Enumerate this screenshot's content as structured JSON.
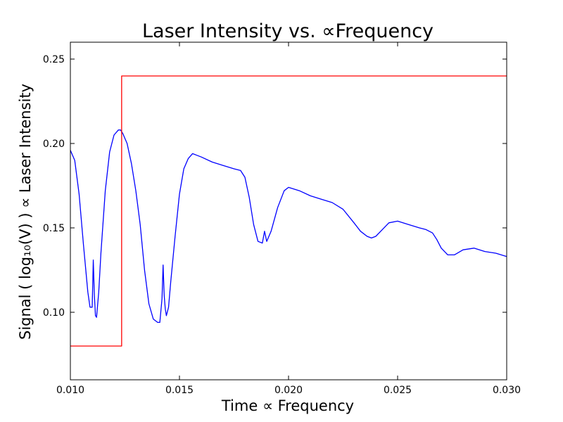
{
  "chart_data": {
    "type": "line",
    "title": "Laser Intensity vs. ∝Frequency",
    "xlabel": "Time ∝ Frequency",
    "ylabel": "Signal ( log₁₀(V) ) ∝ Laser Intensity",
    "xlim": [
      0.01,
      0.03
    ],
    "ylim": [
      0.06,
      0.26
    ],
    "grid": false,
    "x_ticks": [
      "0.010",
      "0.015",
      "0.020",
      "0.025",
      "0.030"
    ],
    "y_ticks": [
      "0.10",
      "0.15",
      "0.20",
      "0.25"
    ],
    "series": [
      {
        "color": "#0000ff",
        "x": [
          0.01,
          0.0102,
          0.0104,
          0.0106,
          0.0108,
          0.0109,
          0.011,
          0.01105,
          0.0111,
          0.01115,
          0.0112,
          0.0113,
          0.0114,
          0.0116,
          0.0118,
          0.012,
          0.0122,
          0.0123,
          0.0124,
          0.0126,
          0.0128,
          0.013,
          0.0132,
          0.0134,
          0.0136,
          0.0138,
          0.014,
          0.0141,
          0.0142,
          0.01425,
          0.0143,
          0.01435,
          0.0144,
          0.0145,
          0.0146,
          0.0148,
          0.015,
          0.0152,
          0.0154,
          0.0156,
          0.0158,
          0.016,
          0.0165,
          0.017,
          0.0175,
          0.0178,
          0.018,
          0.0182,
          0.0184,
          0.0186,
          0.0188,
          0.0189,
          0.019,
          0.0192,
          0.0195,
          0.0198,
          0.02,
          0.0205,
          0.021,
          0.0215,
          0.022,
          0.0225,
          0.023,
          0.0233,
          0.0236,
          0.0238,
          0.024,
          0.0243,
          0.0246,
          0.025,
          0.0255,
          0.026,
          0.0263,
          0.0266,
          0.0268,
          0.027,
          0.0273,
          0.0276,
          0.028,
          0.0285,
          0.029,
          0.0295,
          0.03
        ],
        "values": [
          0.196,
          0.19,
          0.17,
          0.14,
          0.112,
          0.103,
          0.103,
          0.131,
          0.11,
          0.098,
          0.097,
          0.112,
          0.135,
          0.172,
          0.195,
          0.205,
          0.208,
          0.208,
          0.206,
          0.2,
          0.188,
          0.172,
          0.152,
          0.125,
          0.105,
          0.096,
          0.094,
          0.094,
          0.108,
          0.128,
          0.11,
          0.102,
          0.098,
          0.103,
          0.118,
          0.145,
          0.17,
          0.185,
          0.191,
          0.194,
          0.193,
          0.192,
          0.189,
          0.187,
          0.185,
          0.184,
          0.18,
          0.168,
          0.152,
          0.142,
          0.141,
          0.148,
          0.142,
          0.148,
          0.162,
          0.172,
          0.174,
          0.172,
          0.169,
          0.167,
          0.165,
          0.161,
          0.153,
          0.148,
          0.145,
          0.144,
          0.145,
          0.149,
          0.153,
          0.154,
          0.152,
          0.15,
          0.149,
          0.147,
          0.143,
          0.138,
          0.134,
          0.134,
          0.137,
          0.138,
          0.136,
          0.135,
          0.133
        ]
      },
      {
        "color": "#ff0000",
        "x": [
          0.01,
          0.01235,
          0.01235,
          0.03
        ],
        "values": [
          0.08,
          0.08,
          0.24,
          0.24
        ]
      }
    ]
  }
}
